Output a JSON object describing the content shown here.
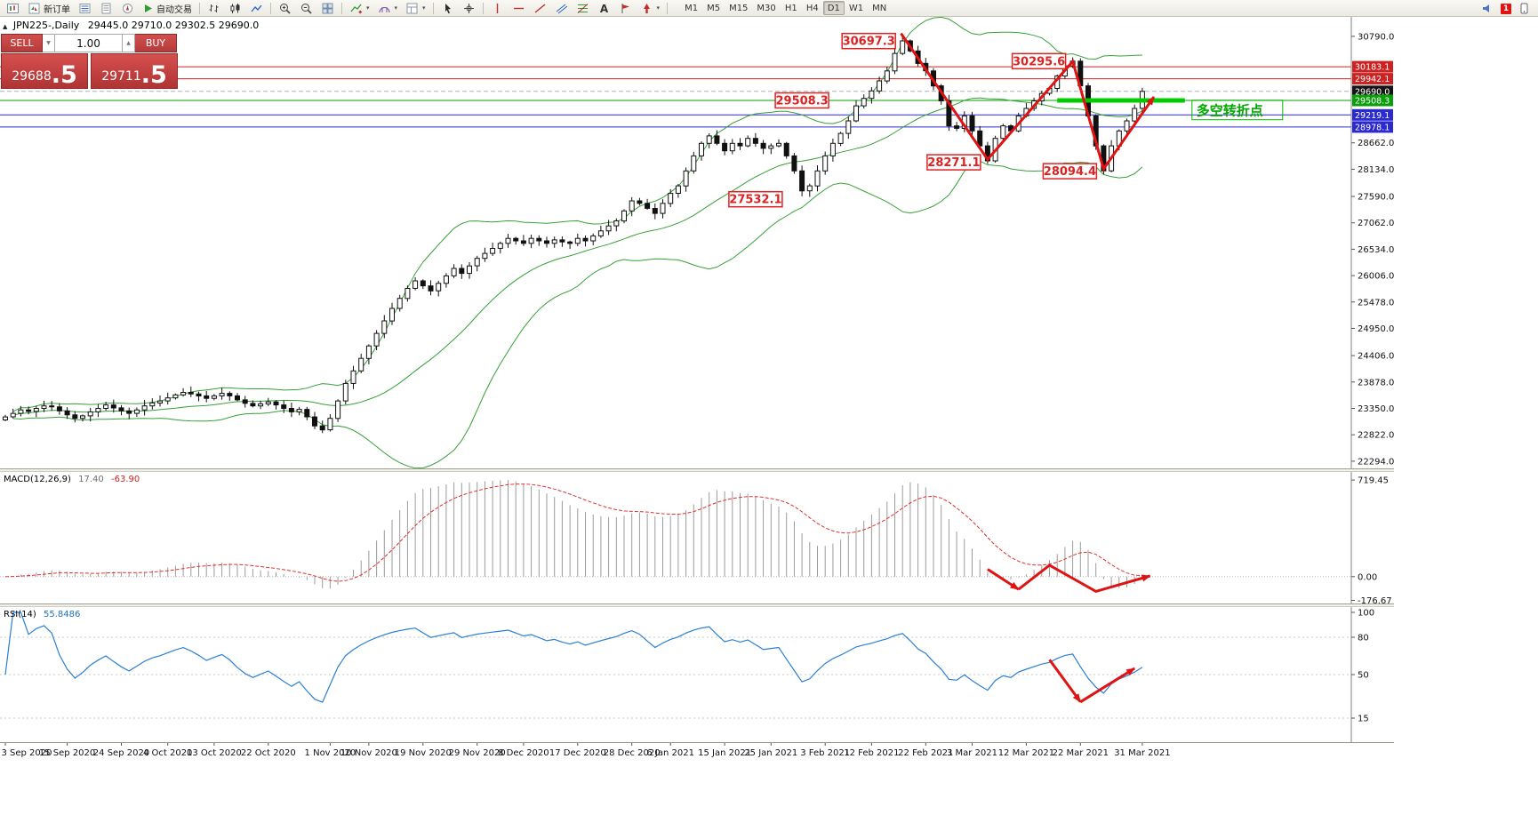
{
  "toolbar": {
    "new_order_label": "新订单",
    "auto_trading_label": "自动交易",
    "text_tool_label": "A",
    "timeframe_labels": [
      "M1",
      "M5",
      "M15",
      "M30",
      "H1",
      "H4",
      "D1",
      "W1",
      "MN"
    ],
    "active_timeframe": "D1",
    "notification_badge": "1"
  },
  "chart_header": {
    "expand_marker": "▲",
    "symbol_title": "JPN225-,Daily",
    "ohlc_values": "29445.0 29710.0 29302.5 29690.0"
  },
  "trade_panel": {
    "sell_label": "SELL",
    "buy_label": "BUY",
    "volume_value": "1.00",
    "spin_down_glyph": "▼",
    "spin_up_glyph": "▲",
    "sell_price_main": "29688",
    "sell_price_frac": ".5",
    "buy_price_main": "29711",
    "buy_price_frac": ".5"
  },
  "price_pane": {
    "axis_ticks": [
      {
        "label": "30790.0",
        "value": 30790.0
      },
      {
        "label": "28662.0",
        "value": 28662.0
      },
      {
        "label": "28134.0",
        "value": 28134.0
      },
      {
        "label": "27590.0",
        "value": 27590.0
      },
      {
        "label": "27062.0",
        "value": 27062.0
      },
      {
        "label": "26534.0",
        "value": 26534.0
      },
      {
        "label": "26006.0",
        "value": 26006.0
      },
      {
        "label": "25478.0",
        "value": 25478.0
      },
      {
        "label": "24950.0",
        "value": 24950.0
      },
      {
        "label": "24406.0",
        "value": 24406.0
      },
      {
        "label": "23878.0",
        "value": 23878.0
      },
      {
        "label": "23350.0",
        "value": 23350.0
      },
      {
        "label": "22822.0",
        "value": 22822.0
      },
      {
        "label": "22294.0",
        "value": 22294.0
      }
    ],
    "hlines": [
      {
        "label": "30183.1",
        "value": 30183.1,
        "line_color": "#cc2222",
        "badge_color": "#cc2222",
        "dash": false
      },
      {
        "label": "29942.1",
        "value": 29942.1,
        "line_color": "#cc2222",
        "badge_color": "#cc2222",
        "dash": false
      },
      {
        "label": "29690.0",
        "value": 29690.0,
        "line_color": "#b0b0b0",
        "badge_color": "#151515",
        "dash": true
      },
      {
        "label": "29508.3",
        "value": 29508.3,
        "line_color": "#00a000",
        "badge_color": "#0b9e0b",
        "dash": false
      },
      {
        "label": "29219.1",
        "value": 29219.1,
        "line_color": "#2a2ad0",
        "badge_color": "#2a2ad0",
        "dash": false
      },
      {
        "label": "28978.1",
        "value": 28978.1,
        "line_color": "#2a2ad0",
        "badge_color": "#2a2ad0",
        "dash": false
      }
    ],
    "annotations": [
      {
        "text": "30697.3",
        "index": 116,
        "value": 30697.3,
        "align": "left"
      },
      {
        "text": "30295.6",
        "index": 138,
        "value": 30295.6,
        "align": "left"
      },
      {
        "text": "29508.3",
        "index": 103,
        "value": 29508.3,
        "align": "center"
      },
      {
        "text": "28271.1",
        "index": 127,
        "value": 28271.1,
        "align": "left"
      },
      {
        "text": "28094.4",
        "index": 142,
        "value": 28094.4,
        "align": "left"
      },
      {
        "text": "27532.1",
        "index": 97,
        "value": 27532.1,
        "align": "center"
      }
    ],
    "trend_arrow": {
      "color": "#e01212",
      "points": [
        [
          115.8,
          30850
        ],
        [
          127,
          28330
        ],
        [
          138,
          30290
        ],
        [
          142,
          28140
        ],
        [
          148.5,
          29580
        ]
      ]
    },
    "green_segment": {
      "value": 29508.3,
      "from_index": 136,
      "to_index": 152.5,
      "color": "#00cc00"
    },
    "pivot_label": {
      "text": "多空转折点",
      "color": "#00aa00",
      "index": 154,
      "value": 29230
    }
  },
  "macd_pane": {
    "name_label": "MACD(12,26,9)",
    "main_value": "17.40",
    "signal_value": "-63.90",
    "axis_ticks": [
      {
        "label": "719.45",
        "value": 719.45
      },
      {
        "label": "0.00",
        "value": 0
      },
      {
        "label": "-176.67",
        "value": -176.67
      }
    ],
    "histogram_color": "#9b9b9b",
    "signal_color": "#e03030",
    "arrows": [
      {
        "points": [
          [
            127,
            55
          ],
          [
            131,
            -95
          ]
        ]
      },
      {
        "points": [
          [
            131,
            -95
          ],
          [
            135,
            85
          ],
          [
            141,
            -110
          ],
          [
            148,
            5
          ]
        ]
      }
    ]
  },
  "rsi_pane": {
    "name_label": "RSI(14)",
    "value": "55.8486",
    "line_color": "#2a7fd5",
    "levels": [
      80,
      50,
      15
    ],
    "axis_ticks": [
      {
        "label": "100",
        "value": 100
      },
      {
        "label": "80",
        "value": 80
      },
      {
        "label": "50",
        "value": 50
      },
      {
        "label": "15",
        "value": 15
      }
    ],
    "arrows": [
      {
        "points": [
          [
            135,
            62
          ],
          [
            139,
            28
          ]
        ]
      },
      {
        "points": [
          [
            139,
            28
          ],
          [
            146,
            55
          ]
        ]
      }
    ]
  },
  "time_axis": {
    "labels": [
      {
        "text": "3 Sep 2020",
        "index": 0
      },
      {
        "text": "15 Sep 2020",
        "index": 8
      },
      {
        "text": "24 Sep 2020",
        "index": 15
      },
      {
        "text": "4 Oct 2020",
        "index": 21
      },
      {
        "text": "13 Oct 2020",
        "index": 27
      },
      {
        "text": "22 Oct 2020",
        "index": 34
      },
      {
        "text": "1 Nov 2020",
        "index": 42
      },
      {
        "text": "10 Nov 2020",
        "index": 47
      },
      {
        "text": "19 Nov 2020",
        "index": 54
      },
      {
        "text": "29 Nov 2020",
        "index": 61
      },
      {
        "text": "8 Dec 2020",
        "index": 67
      },
      {
        "text": "17 Dec 2020",
        "index": 74
      },
      {
        "text": "28 Dec 2020",
        "index": 81
      },
      {
        "text": "6 Jan 2021",
        "index": 86
      },
      {
        "text": "15 Jan 2021",
        "index": 93
      },
      {
        "text": "25 Jan 2021",
        "index": 99
      },
      {
        "text": "3 Feb 2021",
        "index": 106
      },
      {
        "text": "12 Feb 2021",
        "index": 112
      },
      {
        "text": "22 Feb 2021",
        "index": 119
      },
      {
        "text": "3 Mar 2021",
        "index": 125
      },
      {
        "text": "12 Mar 2021",
        "index": 132
      },
      {
        "text": "22 Mar 2021",
        "index": 139
      },
      {
        "text": "31 Mar 2021",
        "index": 147
      }
    ]
  },
  "chart_data": {
    "type": "candlestick",
    "symbol": "JPN225-",
    "timeframe": "Daily",
    "ohlc_display": "29445.0 29710.0 29302.5 29690.0",
    "indicators": {
      "bollinger": {
        "period": 20,
        "deviation": 2
      },
      "macd": {
        "fast": 12,
        "slow": 26,
        "signal": 9,
        "current_main": 17.4,
        "current_signal": -63.9
      },
      "rsi": {
        "period": 14,
        "current": 55.8486
      }
    },
    "key_levels": [
      30183.1,
      29942.1,
      29690.0,
      29508.3,
      29219.1,
      28978.1
    ],
    "swing_points": [
      30697.3,
      28271.1,
      30295.6,
      28094.4,
      27532.1
    ],
    "closes": [
      23180,
      23250,
      23320,
      23290,
      23350,
      23400,
      23380,
      23300,
      23220,
      23150,
      23200,
      23280,
      23350,
      23420,
      23360,
      23300,
      23250,
      23320,
      23400,
      23460,
      23500,
      23560,
      23620,
      23670,
      23640,
      23600,
      23550,
      23600,
      23650,
      23600,
      23520,
      23450,
      23400,
      23440,
      23480,
      23420,
      23350,
      23280,
      23330,
      23180,
      23000,
      22920,
      23150,
      23500,
      23850,
      24100,
      24350,
      24600,
      24850,
      25100,
      25350,
      25550,
      25750,
      25900,
      25800,
      25700,
      25850,
      26000,
      26150,
      26050,
      26200,
      26350,
      26450,
      26550,
      26650,
      26750,
      26700,
      26650,
      26750,
      26700,
      26650,
      26720,
      26680,
      26650,
      26750,
      26700,
      26800,
      26900,
      27000,
      27100,
      27300,
      27500,
      27450,
      27350,
      27250,
      27450,
      27650,
      27800,
      28100,
      28400,
      28650,
      28800,
      28650,
      28500,
      28650,
      28600,
      28750,
      28650,
      28550,
      28600,
      28650,
      28400,
      28100,
      27700,
      27800,
      28100,
      28400,
      28650,
      28850,
      29100,
      29400,
      29550,
      29700,
      29900,
      30100,
      30450,
      30700,
      30500,
      30250,
      30100,
      29800,
      29500,
      29000,
      28950,
      29200,
      28900,
      28600,
      28300,
      28750,
      29000,
      28900,
      29200,
      29350,
      29500,
      29650,
      29750,
      30000,
      30200,
      30295,
      29800,
      29200,
      28600,
      28100,
      28600,
      28900,
      29100,
      29350,
      29690
    ]
  }
}
